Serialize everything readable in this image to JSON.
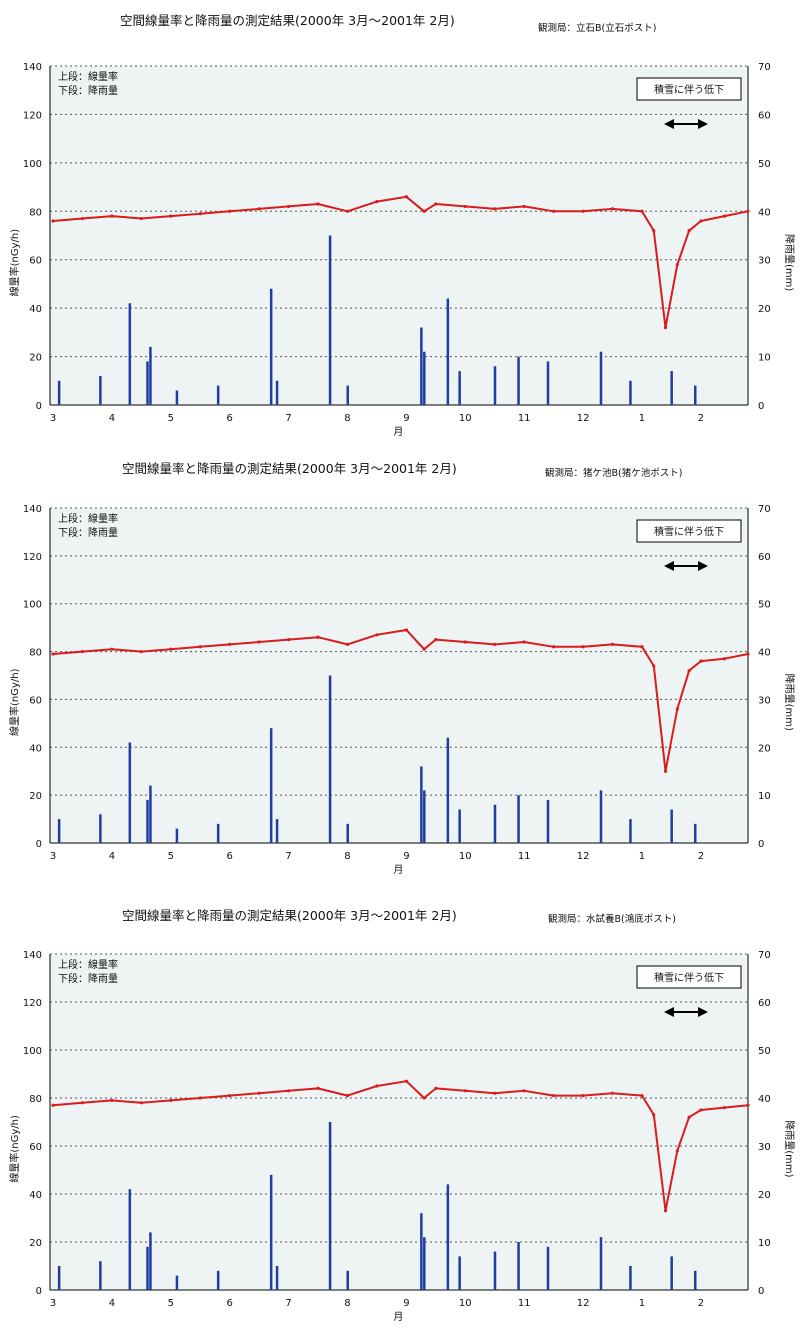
{
  "colors": {
    "dose_line": "#d91c1c",
    "rain_bar": "#1f3fa0",
    "plot_bg": "#eef3f4",
    "grid": "#555555"
  },
  "chart_data": [
    {
      "type": "line",
      "title": "空間線量率と降雨量の測定結果(2000年 3月～2001年 2月)",
      "station": "観測局：立石B(立石ポスト)",
      "legend_lines": [
        "上段：線量率",
        "下段：降雨量"
      ],
      "annotation": "積雪に伴う低下",
      "xlabel": "月",
      "ylabel_left": "線量率(nGy/h)",
      "ylabel_right": "降雨量(mm)",
      "x_ticks": [
        "3",
        "4",
        "5",
        "6",
        "7",
        "8",
        "9",
        "10",
        "11",
        "12",
        "1",
        "2"
      ],
      "ylim_left": [
        0,
        140
      ],
      "y_ticks_left": [
        0,
        20,
        40,
        60,
        80,
        100,
        120,
        140
      ],
      "ylim_right": [
        0,
        70
      ],
      "y_ticks_right": [
        0,
        10,
        20,
        30,
        40,
        50,
        60,
        70
      ],
      "grid": true,
      "series": [
        {
          "axis": "left",
          "x": [
            3.0,
            3.5,
            4.0,
            4.5,
            5.0,
            5.5,
            6.0,
            6.5,
            7.0,
            7.5,
            8.0,
            8.5,
            9.0,
            9.3,
            9.5,
            10.0,
            10.5,
            11.0,
            11.5,
            12.0,
            12.5,
            13.0,
            13.2,
            13.4,
            13.6,
            13.8,
            14.0,
            14.4,
            14.8
          ],
          "y": [
            76,
            77,
            78,
            77,
            78,
            79,
            80,
            81,
            82,
            83,
            80,
            84,
            86,
            80,
            83,
            82,
            81,
            82,
            80,
            80,
            81,
            80,
            72,
            32,
            58,
            72,
            76,
            78,
            80
          ]
        },
        {
          "axis": "right",
          "type": "bar",
          "x": [
            3.1,
            3.8,
            4.3,
            4.6,
            4.65,
            5.1,
            5.8,
            6.7,
            6.8,
            7.7,
            8.0,
            9.25,
            9.3,
            9.7,
            9.9,
            10.5,
            10.9,
            11.4,
            12.3,
            12.8,
            13.5,
            13.9
          ],
          "y": [
            5,
            6,
            21,
            9,
            12,
            3,
            4,
            24,
            5,
            35,
            4,
            16,
            11,
            22,
            7,
            8,
            10,
            9,
            11,
            5,
            7,
            4
          ]
        }
      ]
    },
    {
      "type": "line",
      "title": "空間線量率と降雨量の測定結果(2000年 3月～2001年 2月)",
      "station": "観測局：猪ケ池B(猪ケ池ポスト)",
      "legend_lines": [
        "上段：線量率",
        "下段：降雨量"
      ],
      "annotation": "積雪に伴う低下",
      "xlabel": "月",
      "ylabel_left": "線量率(nGy/h)",
      "ylabel_right": "降雨量(mm)",
      "x_ticks": [
        "3",
        "4",
        "5",
        "6",
        "7",
        "8",
        "9",
        "10",
        "11",
        "12",
        "1",
        "2"
      ],
      "ylim_left": [
        0,
        140
      ],
      "y_ticks_left": [
        0,
        20,
        40,
        60,
        80,
        100,
        120,
        140
      ],
      "ylim_right": [
        0,
        70
      ],
      "y_ticks_right": [
        0,
        10,
        20,
        30,
        40,
        50,
        60,
        70
      ],
      "grid": true,
      "series": [
        {
          "axis": "left",
          "x": [
            3.0,
            3.5,
            4.0,
            4.5,
            5.0,
            5.5,
            6.0,
            6.5,
            7.0,
            7.5,
            8.0,
            8.5,
            9.0,
            9.3,
            9.5,
            10.0,
            10.5,
            11.0,
            11.5,
            12.0,
            12.5,
            13.0,
            13.2,
            13.4,
            13.6,
            13.8,
            14.0,
            14.4,
            14.8
          ],
          "y": [
            79,
            80,
            81,
            80,
            81,
            82,
            83,
            84,
            85,
            86,
            83,
            87,
            89,
            81,
            85,
            84,
            83,
            84,
            82,
            82,
            83,
            82,
            74,
            30,
            56,
            72,
            76,
            77,
            79
          ]
        },
        {
          "axis": "right",
          "type": "bar",
          "x": [
            3.1,
            3.8,
            4.3,
            4.6,
            4.65,
            5.1,
            5.8,
            6.7,
            6.8,
            7.7,
            8.0,
            9.25,
            9.3,
            9.7,
            9.9,
            10.5,
            10.9,
            11.4,
            12.3,
            12.8,
            13.5,
            13.9
          ],
          "y": [
            5,
            6,
            21,
            9,
            12,
            3,
            4,
            24,
            5,
            35,
            4,
            16,
            11,
            22,
            7,
            8,
            10,
            9,
            11,
            5,
            7,
            4
          ]
        }
      ]
    },
    {
      "type": "line",
      "title": "空間線量率と降雨量の測定結果(2000年 3月～2001年 2月)",
      "station": "観測局：水試養B(鴻底ポスト)",
      "legend_lines": [
        "上段：線量率",
        "下段：降雨量"
      ],
      "annotation": "積雪に伴う低下",
      "xlabel": "月",
      "ylabel_left": "線量率(nGy/h)",
      "ylabel_right": "降雨量(mm)",
      "x_ticks": [
        "3",
        "4",
        "5",
        "6",
        "7",
        "8",
        "9",
        "10",
        "11",
        "12",
        "1",
        "2"
      ],
      "ylim_left": [
        0,
        140
      ],
      "y_ticks_left": [
        0,
        20,
        40,
        60,
        80,
        100,
        120,
        140
      ],
      "ylim_right": [
        0,
        70
      ],
      "y_ticks_right": [
        0,
        10,
        20,
        30,
        40,
        50,
        60,
        70
      ],
      "grid": true,
      "series": [
        {
          "axis": "left",
          "x": [
            3.0,
            3.5,
            4.0,
            4.5,
            5.0,
            5.5,
            6.0,
            6.5,
            7.0,
            7.5,
            8.0,
            8.5,
            9.0,
            9.3,
            9.5,
            10.0,
            10.5,
            11.0,
            11.5,
            12.0,
            12.5,
            13.0,
            13.2,
            13.4,
            13.6,
            13.8,
            14.0,
            14.4,
            14.8
          ],
          "y": [
            77,
            78,
            79,
            78,
            79,
            80,
            81,
            82,
            83,
            84,
            81,
            85,
            87,
            80,
            84,
            83,
            82,
            83,
            81,
            81,
            82,
            81,
            73,
            33,
            58,
            72,
            75,
            76,
            77
          ]
        },
        {
          "axis": "right",
          "type": "bar",
          "x": [
            3.1,
            3.8,
            4.3,
            4.6,
            4.65,
            5.1,
            5.8,
            6.7,
            6.8,
            7.7,
            8.0,
            9.25,
            9.3,
            9.7,
            9.9,
            10.5,
            10.9,
            11.4,
            12.3,
            12.8,
            13.5,
            13.9
          ],
          "y": [
            5,
            6,
            21,
            9,
            12,
            3,
            4,
            24,
            5,
            35,
            4,
            16,
            11,
            22,
            7,
            8,
            10,
            9,
            11,
            5,
            7,
            4
          ]
        }
      ]
    }
  ]
}
